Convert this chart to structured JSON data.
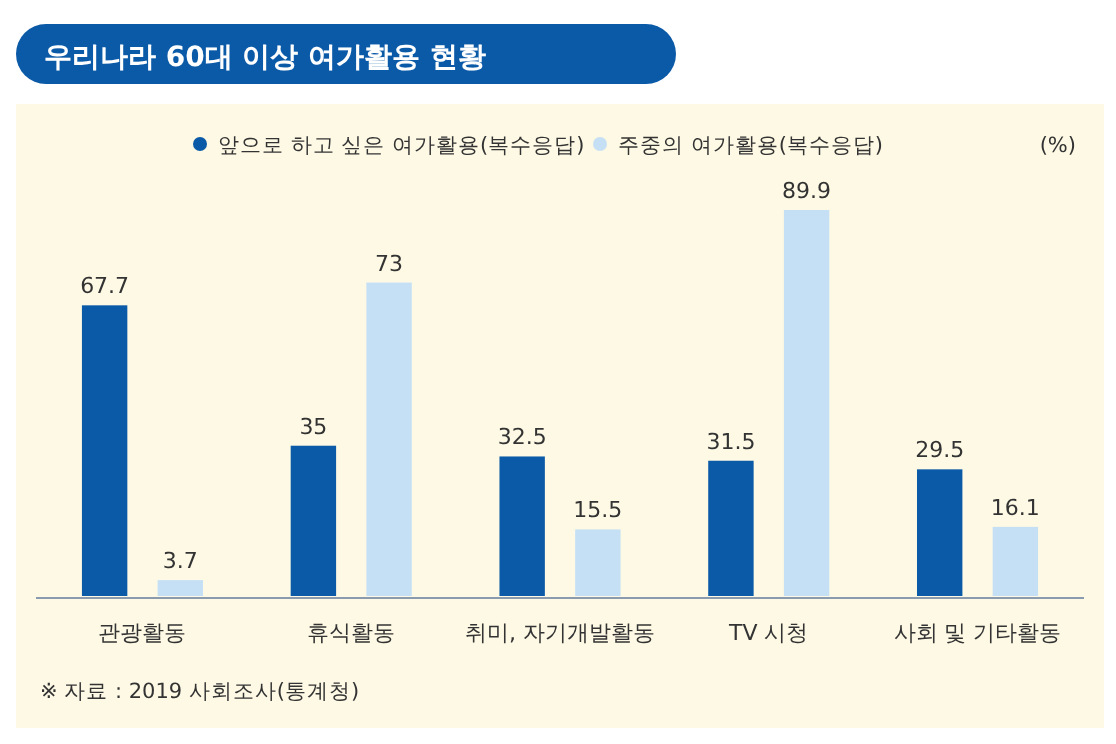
{
  "chart_data": {
    "type": "bar",
    "title": "우리나라 60대 이상 여가활용 현황",
    "categories": [
      "관광활동",
      "휴식활동",
      "취미, 자기개발활동",
      "TV 시청",
      "사회 및 기타활동"
    ],
    "series": [
      {
        "name": "앞으로 하고 싶은 여가활용(복수응답)",
        "color": "#0b5aa8",
        "values": [
          67.7,
          35,
          32.5,
          31.5,
          29.5
        ]
      },
      {
        "name": "주중의 여가활용(복수응답)",
        "color": "#c5e0f5",
        "values": [
          3.7,
          73,
          15.5,
          89.9,
          16.1
        ]
      }
    ],
    "data_labels": true,
    "legend": "top",
    "annotations": [
      "(%)",
      "※ 자료 : 2019 사회조사(통계청)"
    ]
  }
}
